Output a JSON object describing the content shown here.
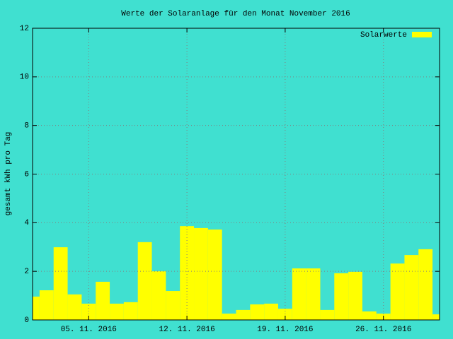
{
  "chart_data": {
    "type": "bar",
    "title": "Werte der Solaranlage für den Monat November 2016",
    "y_label": "gesamt kWh pro Tag",
    "x": [
      "2016-11-01",
      "2016-11-02",
      "2016-11-03",
      "2016-11-04",
      "2016-11-05",
      "2016-11-06",
      "2016-11-07",
      "2016-11-08",
      "2016-11-09",
      "2016-11-10",
      "2016-11-11",
      "2016-11-12",
      "2016-11-13",
      "2016-11-14",
      "2016-11-15",
      "2016-11-16",
      "2016-11-17",
      "2016-11-18",
      "2016-11-19",
      "2016-11-20",
      "2016-11-21",
      "2016-11-22",
      "2016-11-23",
      "2016-11-24",
      "2016-11-25",
      "2016-11-26",
      "2016-11-27",
      "2016-11-28",
      "2016-11-29",
      "2016-11-30"
    ],
    "series": [
      {
        "name": "Solarwerte",
        "color": "#ffff00",
        "values": [
          0.96,
          1.22,
          2.99,
          1.05,
          0.67,
          1.57,
          0.67,
          0.73,
          3.2,
          2.0,
          1.19,
          3.86,
          3.78,
          3.72,
          0.26,
          0.41,
          0.64,
          0.67,
          0.46,
          2.12,
          2.12,
          0.41,
          1.92,
          1.98,
          0.35,
          0.26,
          2.32,
          2.67,
          2.91,
          0.23
        ]
      }
    ],
    "xlim": [
      "2016-11-01",
      "2016-11-30"
    ],
    "xticks": [
      {
        "value": "2016-11-05",
        "label": "05. 11. 2016"
      },
      {
        "value": "2016-11-12",
        "label": "12. 11. 2016"
      },
      {
        "value": "2016-11-19",
        "label": "19. 11. 2016"
      },
      {
        "value": "2016-11-26",
        "label": "26. 11. 2016"
      }
    ],
    "ylim": [
      0,
      12
    ],
    "yticks": [
      0,
      2,
      4,
      6,
      8,
      10,
      12
    ],
    "grid": true,
    "legend": "top-right",
    "background": "#40e0d0"
  }
}
